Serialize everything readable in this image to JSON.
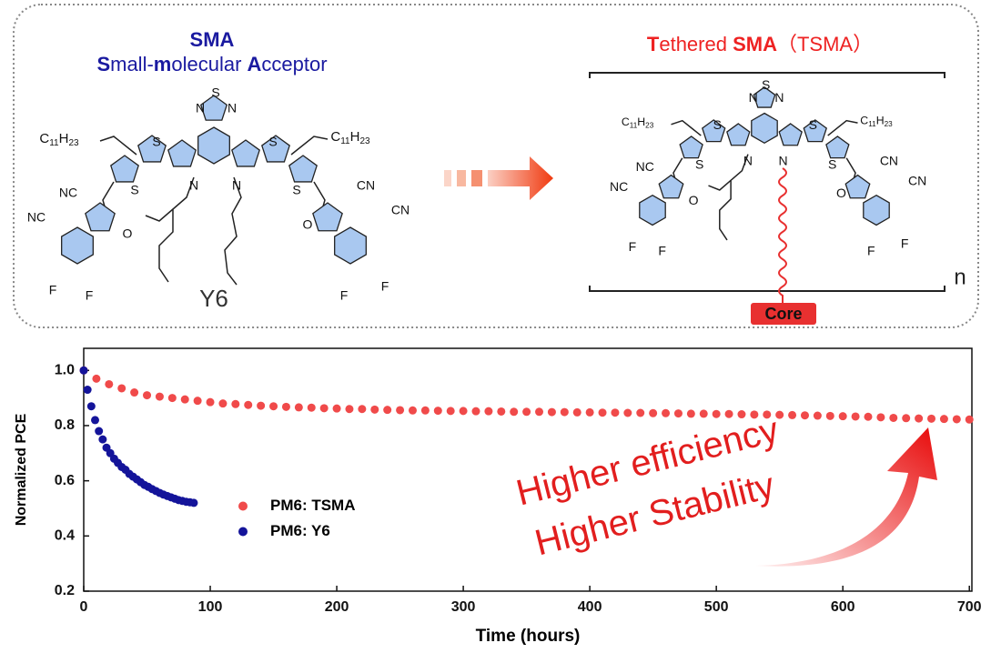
{
  "diagram": {
    "sma": {
      "title": "SMA",
      "subtitle": [
        "S",
        "mall-",
        "m",
        "olecular ",
        "A",
        "cceptor"
      ],
      "name": "Y6",
      "labels": [
        "NC",
        "NC",
        "CN",
        "CN",
        "O",
        "O",
        "F",
        "F",
        "F",
        "F",
        "N",
        "N",
        "S",
        "N",
        "N",
        "S",
        "S",
        "S",
        "S"
      ]
    },
    "tsma": {
      "title": [
        "T",
        "ethered ",
        "SMA",
        "（TSMA）"
      ],
      "labels": [
        "NC",
        "NC",
        "CN",
        "CN",
        "O",
        "O",
        "F",
        "F",
        "F",
        "F",
        "N",
        "N",
        "S",
        "N",
        "N",
        "S",
        "S",
        "S",
        "S"
      ],
      "core": "Core",
      "repeat": "n"
    },
    "alkyl": [
      "C",
      "11",
      "H",
      "23"
    ]
  },
  "chart_data": {
    "type": "scatter",
    "x_label": "Time (hours)",
    "y_label": "Normalized PCE",
    "xlim": [
      0,
      702
    ],
    "ylim": [
      0.2,
      1.08
    ],
    "xticks": [
      0,
      100,
      200,
      300,
      400,
      500,
      600,
      700
    ],
    "yticks": [
      0.2,
      0.4,
      0.6,
      0.8,
      {
        "value": 1,
        "label": "1.0"
      }
    ],
    "legend": "center-left",
    "annotations": [
      "Higher efficiency",
      "Higher Stability"
    ],
    "series": [
      {
        "name": "PM6: TSMA",
        "color": "#f04a4a",
        "x": [
          0,
          10,
          20,
          30,
          40,
          50,
          60,
          70,
          80,
          90,
          100,
          110,
          120,
          130,
          140,
          150,
          160,
          170,
          180,
          190,
          200,
          210,
          220,
          230,
          240,
          250,
          260,
          270,
          280,
          290,
          300,
          310,
          320,
          330,
          340,
          350,
          360,
          370,
          380,
          390,
          400,
          410,
          420,
          430,
          440,
          450,
          460,
          470,
          480,
          490,
          500,
          510,
          520,
          530,
          540,
          550,
          560,
          570,
          580,
          590,
          600,
          610,
          620,
          630,
          640,
          650,
          660,
          670,
          680,
          690,
          700
        ],
        "values": [
          1.0,
          0.97,
          0.95,
          0.935,
          0.92,
          0.91,
          0.905,
          0.9,
          0.895,
          0.89,
          0.885,
          0.88,
          0.878,
          0.875,
          0.872,
          0.87,
          0.868,
          0.866,
          0.865,
          0.863,
          0.862,
          0.86,
          0.86,
          0.858,
          0.857,
          0.856,
          0.855,
          0.855,
          0.854,
          0.853,
          0.853,
          0.852,
          0.852,
          0.851,
          0.85,
          0.85,
          0.85,
          0.849,
          0.849,
          0.848,
          0.848,
          0.847,
          0.847,
          0.846,
          0.846,
          0.845,
          0.845,
          0.844,
          0.843,
          0.843,
          0.842,
          0.842,
          0.841,
          0.84,
          0.84,
          0.839,
          0.838,
          0.837,
          0.836,
          0.835,
          0.834,
          0.833,
          0.832,
          0.83,
          0.828,
          0.827,
          0.826,
          0.825,
          0.824,
          0.823,
          0.822
        ]
      },
      {
        "name": "PM6: Y6",
        "color": "#14149a",
        "x": [
          0,
          3,
          6,
          9,
          12,
          15,
          18,
          21,
          24,
          27,
          30,
          33,
          36,
          39,
          42,
          45,
          48,
          51,
          54,
          57,
          60,
          63,
          66,
          69,
          72,
          75,
          78,
          81,
          84,
          87
        ],
        "values": [
          1.0,
          0.93,
          0.87,
          0.82,
          0.78,
          0.75,
          0.72,
          0.7,
          0.68,
          0.665,
          0.65,
          0.64,
          0.625,
          0.615,
          0.605,
          0.595,
          0.585,
          0.578,
          0.57,
          0.563,
          0.556,
          0.55,
          0.545,
          0.54,
          0.535,
          0.53,
          0.527,
          0.524,
          0.522,
          0.52
        ]
      }
    ]
  }
}
